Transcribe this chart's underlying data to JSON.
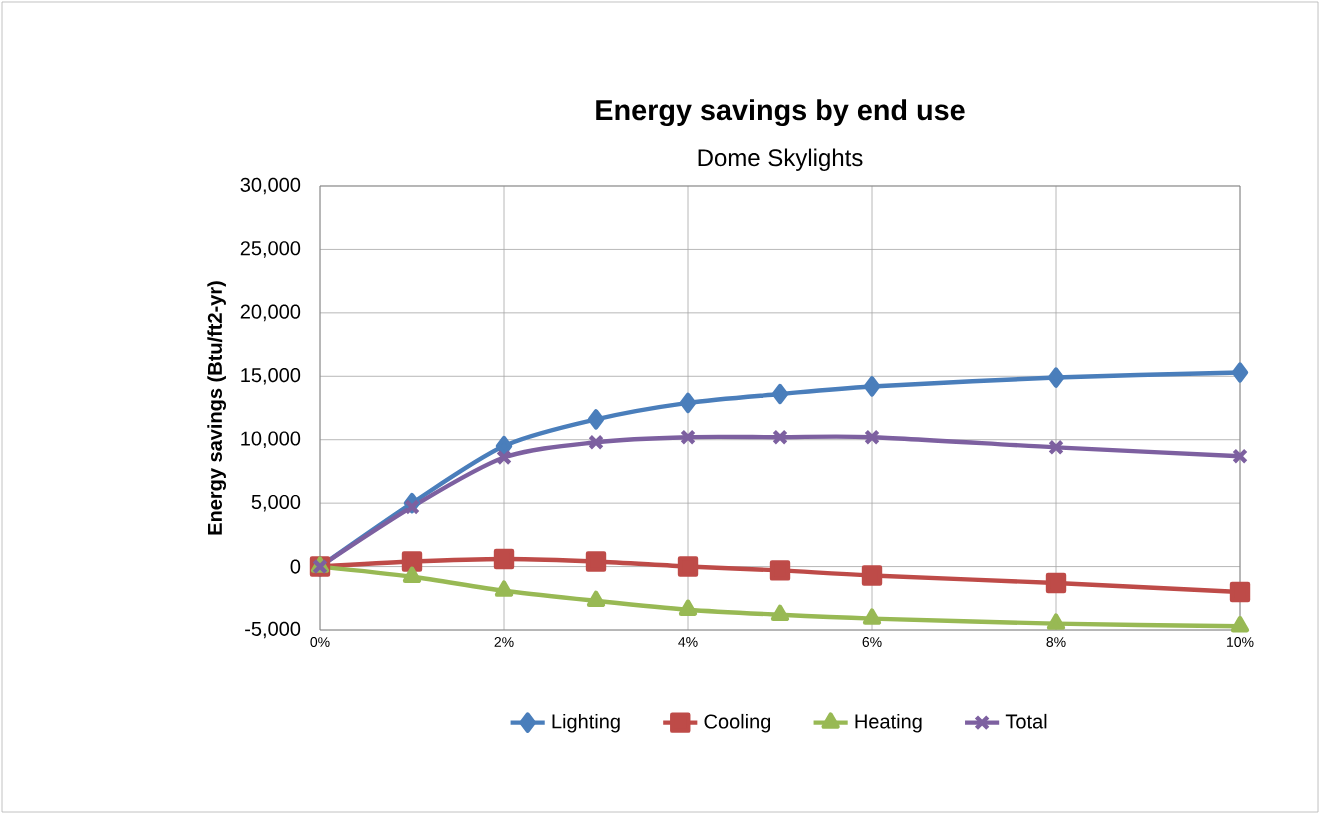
{
  "chart_data": {
    "type": "line",
    "title": "Energy savings by end use",
    "subtitle": "Dome Skylights",
    "ylabel": "Energy savings (Btu/ft2-yr)",
    "x": [
      0,
      1,
      2,
      3,
      4,
      5,
      6,
      8,
      10
    ],
    "xlim": [
      0,
      10
    ],
    "xticks": [
      {
        "value": 0,
        "label": "0%"
      },
      {
        "value": 2,
        "label": "2%"
      },
      {
        "value": 4,
        "label": "4%"
      },
      {
        "value": 6,
        "label": "6%"
      },
      {
        "value": 8,
        "label": "8%"
      },
      {
        "value": 10,
        "label": "10%"
      }
    ],
    "ylim": [
      -5000,
      30000
    ],
    "yticks": [
      {
        "value": -5000,
        "label": "-5,000"
      },
      {
        "value": 0,
        "label": "0"
      },
      {
        "value": 5000,
        "label": "5,000"
      },
      {
        "value": 10000,
        "label": "10,000"
      },
      {
        "value": 15000,
        "label": "15,000"
      },
      {
        "value": 20000,
        "label": "20,000"
      },
      {
        "value": 25000,
        "label": "25,000"
      },
      {
        "value": 30000,
        "label": "30,000"
      }
    ],
    "grid": true,
    "legend": "bottom",
    "line_style": "solid",
    "series": [
      {
        "name": "Lighting",
        "color": "#4a7ebb",
        "marker": "diamond",
        "values": [
          0,
          5000,
          9500,
          11600,
          12900,
          13600,
          14200,
          14900,
          15300
        ]
      },
      {
        "name": "Cooling",
        "color": "#be4b48",
        "marker": "square",
        "values": [
          0,
          400,
          600,
          400,
          0,
          -300,
          -700,
          -1300,
          -2000
        ]
      },
      {
        "name": "Heating",
        "color": "#98b954",
        "marker": "triangle",
        "values": [
          0,
          -800,
          -1900,
          -2700,
          -3400,
          -3800,
          -4100,
          -4500,
          -4700
        ]
      },
      {
        "name": "Total",
        "color": "#7d60a0",
        "marker": "cross",
        "values": [
          0,
          4700,
          8600,
          9800,
          10200,
          10200,
          10200,
          9400,
          8700
        ]
      }
    ]
  }
}
